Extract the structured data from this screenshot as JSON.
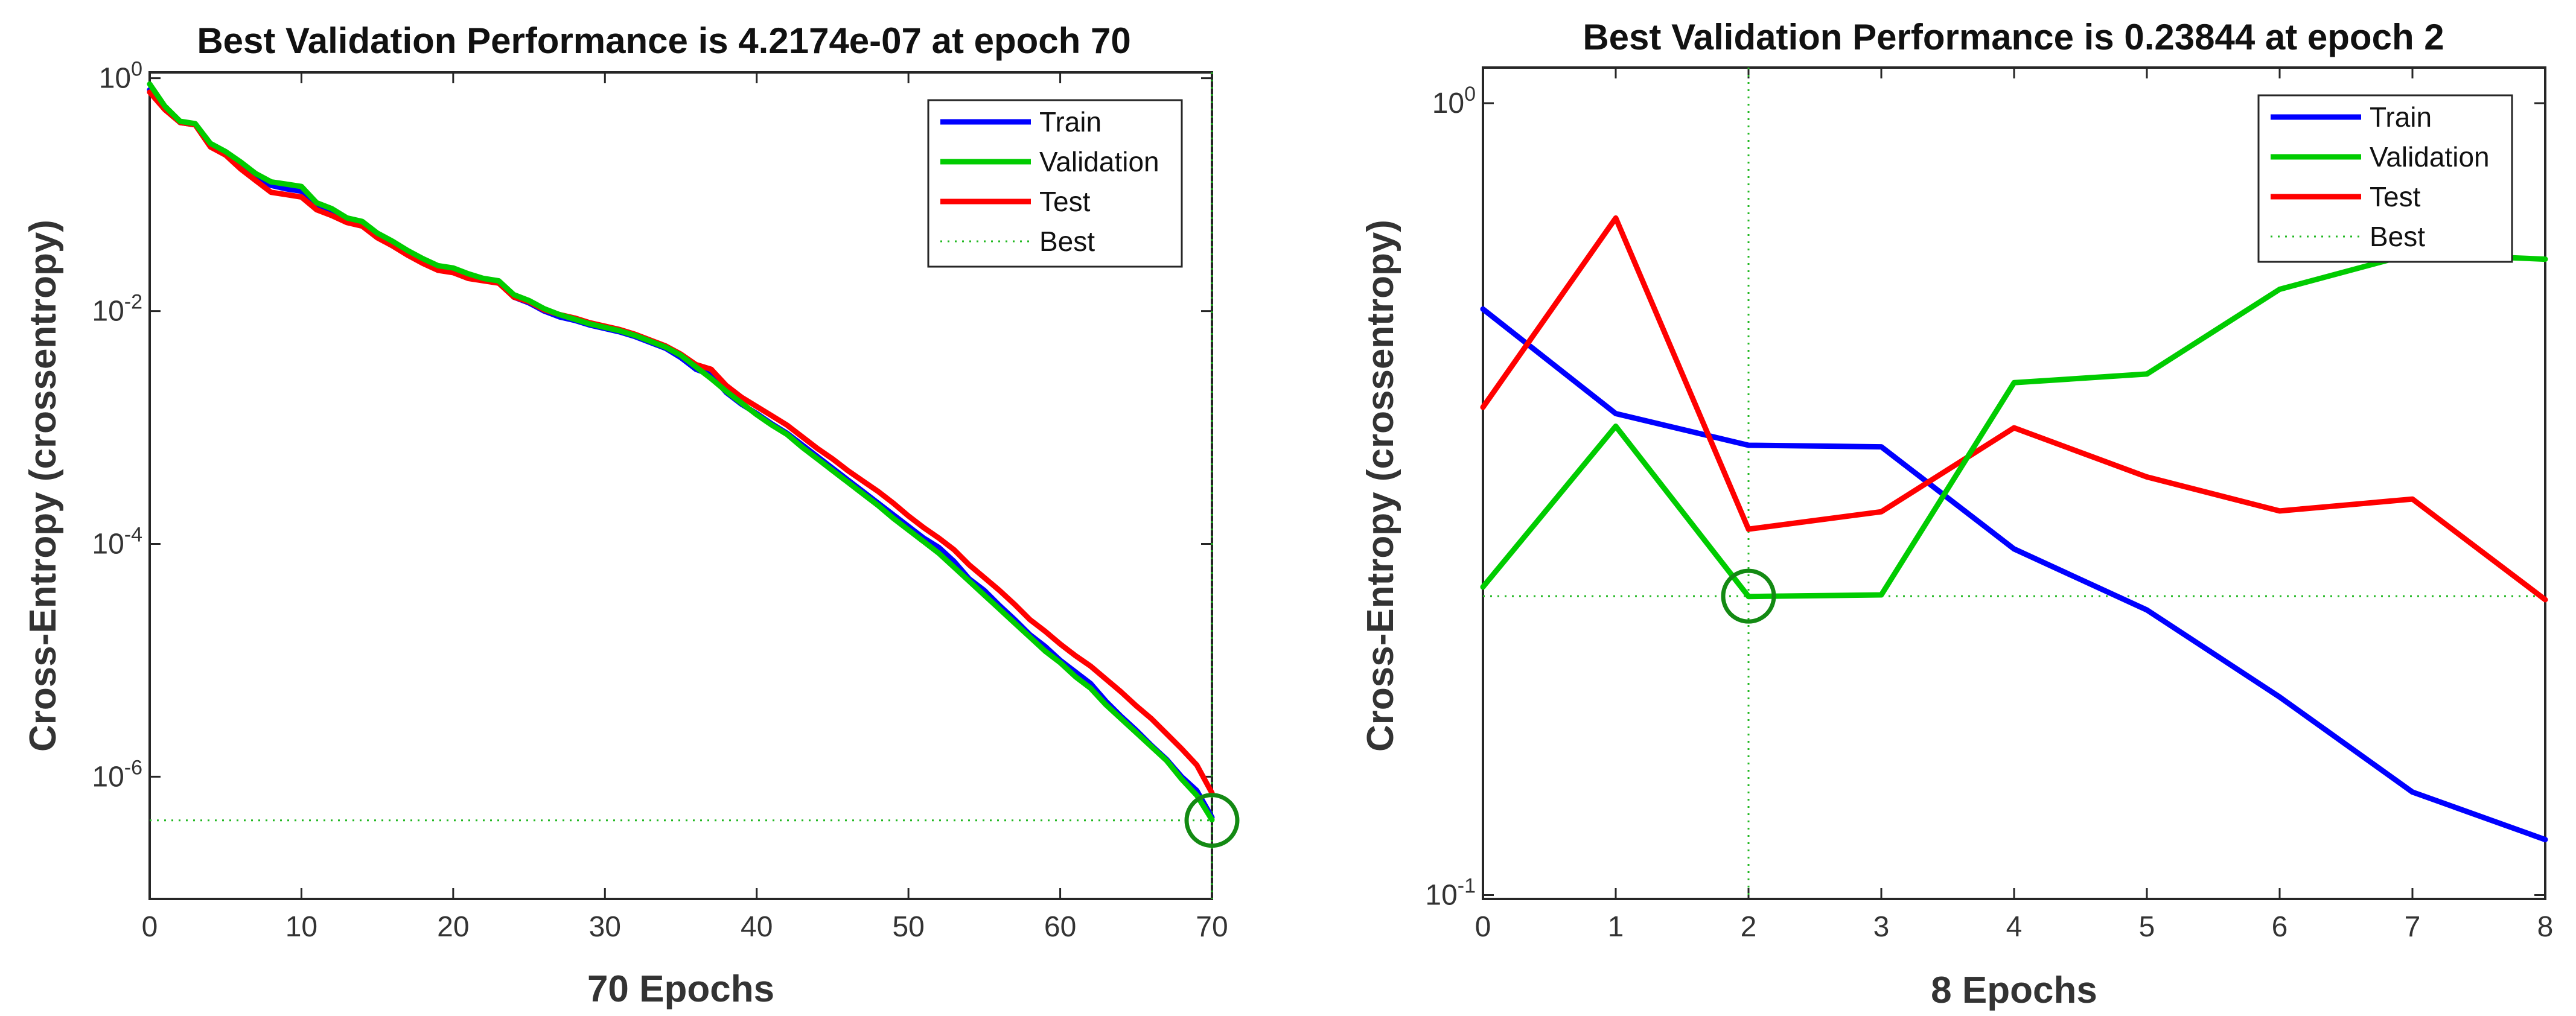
{
  "chart_data": [
    {
      "type": "line",
      "title": "Best Validation Performance is 4.2174e-07 at epoch 70",
      "xlabel": "70 Epochs",
      "ylabel": "Cross-Entropy  (crossentropy)",
      "yscale": "log",
      "xlim": [
        0,
        70
      ],
      "ylim_log10": [
        -7.05,
        0.05
      ],
      "xticks": [
        0,
        10,
        20,
        30,
        40,
        50,
        60,
        70
      ],
      "xtick_labels": [
        "0",
        "10",
        "20",
        "30",
        "40",
        "50",
        "60",
        "70"
      ],
      "yticks_log10": [
        0,
        -2,
        -4,
        -6
      ],
      "ytick_labels": [
        {
          "base": "10",
          "exp": "0"
        },
        {
          "base": "10",
          "exp": "-2"
        },
        {
          "base": "10",
          "exp": "-4"
        },
        {
          "base": "10",
          "exp": "-6"
        }
      ],
      "best": {
        "epoch": 70,
        "value_log10": -6.375,
        "label": "Best"
      },
      "legend_position": "top-right",
      "series": [
        {
          "name": "Train",
          "color": "#0000ff",
          "x": [
            0,
            1,
            2,
            3,
            4,
            5,
            6,
            7,
            8,
            9,
            10,
            11,
            12,
            13,
            14,
            15,
            16,
            17,
            18,
            19,
            20,
            21,
            22,
            23,
            24,
            25,
            26,
            27,
            28,
            29,
            30,
            31,
            32,
            33,
            34,
            35,
            36,
            37,
            38,
            39,
            40,
            41,
            42,
            43,
            44,
            45,
            46,
            47,
            48,
            49,
            50,
            51,
            52,
            53,
            54,
            55,
            56,
            57,
            58,
            59,
            60,
            61,
            62,
            63,
            64,
            65,
            66,
            67,
            68,
            69,
            70
          ],
          "y_log10": [
            -0.1,
            -0.25,
            -0.38,
            -0.4,
            -0.58,
            -0.65,
            -0.75,
            -0.85,
            -0.92,
            -0.95,
            -0.97,
            -1.1,
            -1.15,
            -1.22,
            -1.25,
            -1.35,
            -1.42,
            -1.5,
            -1.57,
            -1.63,
            -1.65,
            -1.7,
            -1.73,
            -1.75,
            -1.88,
            -1.93,
            -2.0,
            -2.05,
            -2.08,
            -2.12,
            -2.15,
            -2.18,
            -2.22,
            -2.27,
            -2.32,
            -2.4,
            -2.5,
            -2.55,
            -2.7,
            -2.8,
            -2.88,
            -2.97,
            -3.05,
            -3.15,
            -3.25,
            -3.35,
            -3.45,
            -3.55,
            -3.65,
            -3.75,
            -3.85,
            -3.95,
            -4.03,
            -4.15,
            -4.3,
            -4.4,
            -4.53,
            -4.65,
            -4.78,
            -4.88,
            -5.0,
            -5.1,
            -5.2,
            -5.35,
            -5.48,
            -5.6,
            -5.73,
            -5.85,
            -6.0,
            -6.12,
            -6.35
          ]
        },
        {
          "name": "Validation",
          "color": "#00cc00",
          "x": [
            0,
            1,
            2,
            3,
            4,
            5,
            6,
            7,
            8,
            9,
            10,
            11,
            12,
            13,
            14,
            15,
            16,
            17,
            18,
            19,
            20,
            21,
            22,
            23,
            24,
            25,
            26,
            27,
            28,
            29,
            30,
            31,
            32,
            33,
            34,
            35,
            36,
            37,
            38,
            39,
            40,
            41,
            42,
            43,
            44,
            45,
            46,
            47,
            48,
            49,
            50,
            51,
            52,
            53,
            54,
            55,
            56,
            57,
            58,
            59,
            60,
            61,
            62,
            63,
            64,
            65,
            66,
            67,
            68,
            69,
            70
          ],
          "y_log10": [
            -0.05,
            -0.24,
            -0.37,
            -0.39,
            -0.56,
            -0.63,
            -0.72,
            -0.82,
            -0.89,
            -0.91,
            -0.93,
            -1.07,
            -1.12,
            -1.2,
            -1.23,
            -1.33,
            -1.4,
            -1.48,
            -1.55,
            -1.61,
            -1.63,
            -1.68,
            -1.72,
            -1.74,
            -1.86,
            -1.91,
            -1.98,
            -2.03,
            -2.07,
            -2.11,
            -2.14,
            -2.17,
            -2.21,
            -2.26,
            -2.31,
            -2.38,
            -2.48,
            -2.58,
            -2.69,
            -2.79,
            -2.89,
            -2.98,
            -3.06,
            -3.17,
            -3.27,
            -3.37,
            -3.47,
            -3.57,
            -3.67,
            -3.78,
            -3.88,
            -3.98,
            -4.08,
            -4.2,
            -4.32,
            -4.44,
            -4.56,
            -4.68,
            -4.8,
            -4.92,
            -5.02,
            -5.14,
            -5.24,
            -5.38,
            -5.5,
            -5.62,
            -5.74,
            -5.86,
            -6.02,
            -6.16,
            -6.37
          ]
        },
        {
          "name": "Test",
          "color": "#ff0000",
          "x": [
            0,
            1,
            2,
            3,
            4,
            5,
            6,
            7,
            8,
            9,
            10,
            11,
            12,
            13,
            14,
            15,
            16,
            17,
            18,
            19,
            20,
            21,
            22,
            23,
            24,
            25,
            26,
            27,
            28,
            29,
            30,
            31,
            32,
            33,
            34,
            35,
            36,
            37,
            38,
            39,
            40,
            41,
            42,
            43,
            44,
            45,
            46,
            47,
            48,
            49,
            50,
            51,
            52,
            53,
            54,
            55,
            56,
            57,
            58,
            59,
            60,
            61,
            62,
            63,
            64,
            65,
            66,
            67,
            68,
            69,
            70
          ],
          "y_log10": [
            -0.12,
            -0.27,
            -0.38,
            -0.4,
            -0.59,
            -0.66,
            -0.78,
            -0.88,
            -0.98,
            -1.0,
            -1.02,
            -1.13,
            -1.18,
            -1.24,
            -1.27,
            -1.37,
            -1.44,
            -1.52,
            -1.59,
            -1.65,
            -1.67,
            -1.72,
            -1.74,
            -1.76,
            -1.88,
            -1.92,
            -1.99,
            -2.03,
            -2.06,
            -2.1,
            -2.13,
            -2.16,
            -2.2,
            -2.25,
            -2.3,
            -2.37,
            -2.46,
            -2.5,
            -2.64,
            -2.74,
            -2.82,
            -2.9,
            -2.98,
            -3.08,
            -3.18,
            -3.27,
            -3.37,
            -3.46,
            -3.55,
            -3.65,
            -3.76,
            -3.86,
            -3.95,
            -4.05,
            -4.18,
            -4.29,
            -4.4,
            -4.52,
            -4.65,
            -4.75,
            -4.86,
            -4.96,
            -5.05,
            -5.16,
            -5.27,
            -5.39,
            -5.5,
            -5.63,
            -5.76,
            -5.9,
            -6.14
          ]
        }
      ]
    },
    {
      "type": "line",
      "title": "Best Validation Performance is 0.23844 at epoch 2",
      "xlabel": "8 Epochs",
      "ylabel": "Cross-Entropy  (crossentropy)",
      "yscale": "log",
      "xlim": [
        0,
        8
      ],
      "ylim_log10": [
        -1.005,
        0.045
      ],
      "xticks": [
        0,
        1,
        2,
        3,
        4,
        5,
        6,
        7,
        8
      ],
      "xtick_labels": [
        "0",
        "1",
        "2",
        "3",
        "4",
        "5",
        "6",
        "7",
        "8"
      ],
      "yticks_log10": [
        0,
        -1
      ],
      "ytick_labels": [
        {
          "base": "10",
          "exp": "0"
        },
        {
          "base": "10",
          "exp": "-1"
        }
      ],
      "best": {
        "epoch": 2,
        "value_log10": -0.6226,
        "label": "Best"
      },
      "legend_position": "top-right",
      "series": [
        {
          "name": "Train",
          "color": "#0000ff",
          "x": [
            0,
            1,
            2,
            3,
            4,
            5,
            6,
            7,
            8
          ],
          "y_log10": [
            -0.26,
            -0.392,
            -0.432,
            -0.434,
            -0.563,
            -0.64,
            -0.75,
            -0.87,
            -0.93
          ]
        },
        {
          "name": "Validation",
          "color": "#00cc00",
          "x": [
            0,
            1,
            2,
            3,
            4,
            5,
            6,
            7,
            8
          ],
          "y_log10": [
            -0.611,
            -0.408,
            -0.623,
            -0.621,
            -0.353,
            -0.342,
            -0.235,
            -0.19,
            -0.197
          ]
        },
        {
          "name": "Test",
          "color": "#ff0000",
          "x": [
            0,
            1,
            2,
            3,
            4,
            5,
            6,
            7,
            8
          ],
          "y_log10": [
            -0.384,
            -0.145,
            -0.538,
            -0.516,
            -0.41,
            -0.472,
            -0.515,
            -0.5,
            -0.627
          ]
        }
      ]
    }
  ]
}
